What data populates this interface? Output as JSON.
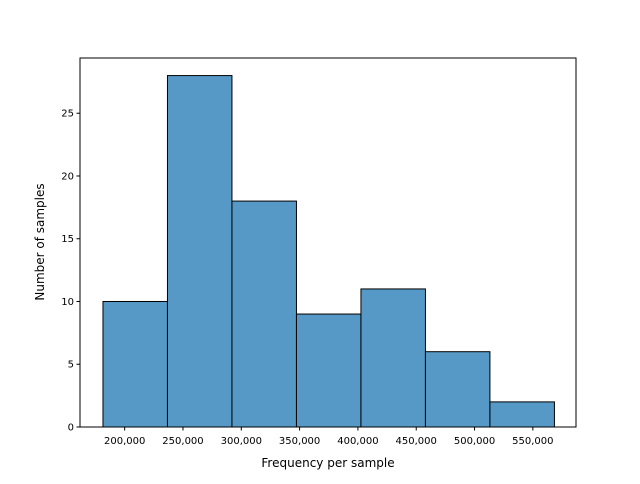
{
  "chart_data": {
    "type": "bar",
    "subtype": "histogram",
    "title": "",
    "xlabel": "Frequency per sample",
    "ylabel": "Number of samples",
    "bin_edges": [
      181400,
      236700,
      292000,
      347300,
      402600,
      457900,
      513200,
      568500
    ],
    "values": [
      10,
      28,
      18,
      9,
      11,
      6,
      2
    ],
    "xlim": [
      161700,
      587000
    ],
    "ylim": [
      0,
      29.4
    ],
    "xticks": [
      200000,
      250000,
      300000,
      350000,
      400000,
      450000,
      500000,
      550000
    ],
    "xtick_labels": [
      "200,000",
      "250,000",
      "300,000",
      "350,000",
      "400,000",
      "450,000",
      "500,000",
      "550,000"
    ],
    "yticks": [
      0,
      5,
      10,
      15,
      20,
      25
    ],
    "ytick_labels": [
      "0",
      "5",
      "10",
      "15",
      "20",
      "25"
    ],
    "grid": false,
    "bar_color": "#5799c6",
    "edge_color": "#000000"
  }
}
